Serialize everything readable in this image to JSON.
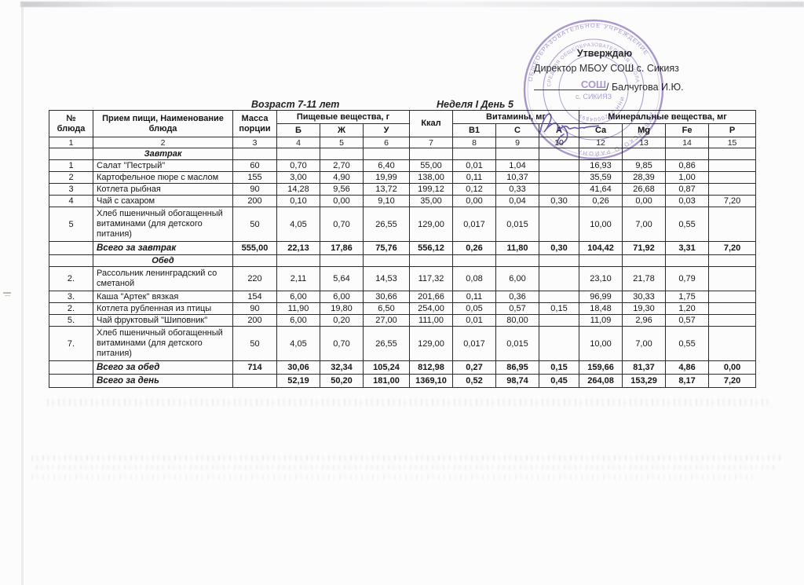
{
  "approval": {
    "line1": "Утверждаю",
    "line2": "Директор МБОУ СОШ с. Сикияз",
    "signature_suffix": "/ Балчугова И.Ю."
  },
  "titles": {
    "age": "Возраст 7-11 лет",
    "week_day": "Неделя I  День 5"
  },
  "stamp": {
    "color": "#7e63b4",
    "ring_outer_top": "ОБЩЕОБРАЗОВАТЕЛЬНОЕ УЧРЕЖДЕНИЕ",
    "ring_outer_bottom": "ДУВАНСКОГО РАЙОНА",
    "ring_inner_top": "СРЕДНЯЯ ОБЩЕОБРАЗОВАТЕЛЬНАЯ ШКОЛА",
    "ring_inner_bottom": "ИНН 0220004899",
    "center_line1": "СОШ",
    "center_line2": "с. СИКИЯЗ"
  },
  "table": {
    "header": {
      "col_no": "№ блюда",
      "col_name": "Прием пищи, Наименование блюда",
      "col_mass": "Масса порции",
      "group_nutrients": "Пищевые вещества, г",
      "col_kcal": "Ккал",
      "group_vitamins": "Витамины, мг",
      "group_minerals": "Минеральные вещества, мг",
      "sub": [
        "Б",
        "Ж",
        "У",
        "B1",
        "C",
        "A",
        "Ca",
        "Mg",
        "Fe",
        "P"
      ]
    },
    "index": [
      "1",
      "2",
      "3",
      "4",
      "5",
      "6",
      "7",
      "8",
      "9",
      "10",
      "12",
      "13",
      "14",
      "15"
    ],
    "sections": [
      {
        "title_row": {
          "name": "Завтрак"
        },
        "rows": [
          {
            "no": "1",
            "name": "Салат \"Пестрый\"",
            "mass": "60",
            "b": "0,70",
            "zh": "2,70",
            "u": "6,40",
            "kcal": "55,00",
            "b1": "0,01",
            "c": "1,04",
            "a": "",
            "ca": "16,93",
            "mg": "9,85",
            "fe": "0,86",
            "p": ""
          },
          {
            "no": "2",
            "name": "Картофельное пюре с маслом",
            "mass": "155",
            "b": "3,00",
            "zh": "4,90",
            "u": "19,99",
            "kcal": "138,00",
            "b1": "0,11",
            "c": "10,37",
            "a": "",
            "ca": "35,59",
            "mg": "28,39",
            "fe": "1,00",
            "p": ""
          },
          {
            "no": "3",
            "name": "Котлета рыбная",
            "mass": "90",
            "b": "14,28",
            "zh": "9,56",
            "u": "13,72",
            "kcal": "199,12",
            "b1": "0,12",
            "c": "0,33",
            "a": "",
            "ca": "41,64",
            "mg": "26,68",
            "fe": "0,87",
            "p": ""
          },
          {
            "no": "4",
            "name": "Чай с сахаром",
            "mass": "200",
            "b": "0,10",
            "zh": "0,00",
            "u": "9,10",
            "kcal": "35,00",
            "b1": "0,00",
            "c": "0,04",
            "a": "0,30",
            "ca": "0,26",
            "mg": "0,00",
            "fe": "0,03",
            "p": "7,20"
          },
          {
            "no": "5",
            "name": "Хлеб пшеничный обогащенный витаминами (для детского питания)",
            "mass": "50",
            "b": "4,05",
            "zh": "0,70",
            "u": "26,55",
            "kcal": "129,00",
            "b1": "0,017",
            "c": "0,015",
            "a": "",
            "ca": "10,00",
            "mg": "7,00",
            "fe": "0,55",
            "p": ""
          }
        ],
        "total": {
          "no": "",
          "name": "Всего за завтрак",
          "mass": "555,00",
          "b": "22,13",
          "zh": "17,86",
          "u": "75,76",
          "kcal": "556,12",
          "b1": "0,26",
          "c": "11,80",
          "a": "0,30",
          "ca": "104,42",
          "mg": "71,92",
          "fe": "3,31",
          "p": "7,20"
        }
      },
      {
        "title_row": {
          "name": "Обед"
        },
        "rows": [
          {
            "no": "2.",
            "name": "Рассольник ленинградский со сметаной",
            "mass": "220",
            "b": "2,11",
            "zh": "5,64",
            "u": "14,53",
            "kcal": "117,32",
            "b1": "0,08",
            "c": "6,00",
            "a": "",
            "ca": "23,10",
            "mg": "21,78",
            "fe": "0,79",
            "p": ""
          },
          {
            "no": "3.",
            "name": "Каша \"Артек\"  вязкая",
            "mass": "154",
            "b": "6,00",
            "zh": "6,00",
            "u": "30,66",
            "kcal": "201,66",
            "b1": "0,11",
            "c": "0,36",
            "a": "",
            "ca": "96,99",
            "mg": "30,33",
            "fe": "1,75",
            "p": ""
          },
          {
            "no": "2.",
            "name": "Котлета рубленная из птицы",
            "mass": "90",
            "b": "11,90",
            "zh": "19,80",
            "u": "6,50",
            "kcal": "254,00",
            "b1": "0,05",
            "c": "0,57",
            "a": "0,15",
            "ca": "18,48",
            "mg": "19,30",
            "fe": "1,20",
            "p": ""
          },
          {
            "no": "5.",
            "name": "Чай фруктовый \"Шиповник\"",
            "mass": "200",
            "b": "6,00",
            "zh": "0,20",
            "u": "27,00",
            "kcal": "111,00",
            "b1": "0,01",
            "c": "80,00",
            "a": "",
            "ca": "11,09",
            "mg": "2,96",
            "fe": "0,57",
            "p": ""
          },
          {
            "no": "7.",
            "name": "Хлеб пшеничный обогащенный витаминами (для детского питания)",
            "mass": "50",
            "b": "4,05",
            "zh": "0,70",
            "u": "26,55",
            "kcal": "129,00",
            "b1": "0,017",
            "c": "0,015",
            "a": "",
            "ca": "10,00",
            "mg": "7,00",
            "fe": "0,55",
            "p": ""
          }
        ],
        "total": {
          "no": "",
          "name": "Всего за обед",
          "mass": "714",
          "b": "30,06",
          "zh": "32,34",
          "u": "105,24",
          "kcal": "812,98",
          "b1": "0,27",
          "c": "86,95",
          "a": "0,15",
          "ca": "159,66",
          "mg": "81,37",
          "fe": "4,86",
          "p": "0,00"
        }
      }
    ],
    "grand_total": {
      "no": "",
      "name": "Всего за день",
      "mass": "",
      "b": "52,19",
      "zh": "50,20",
      "u": "181,00",
      "kcal": "1369,10",
      "b1": "0,52",
      "c": "98,74",
      "a": "0,45",
      "ca": "264,08",
      "mg": "153,29",
      "fe": "8,17",
      "p": "7,20"
    }
  }
}
